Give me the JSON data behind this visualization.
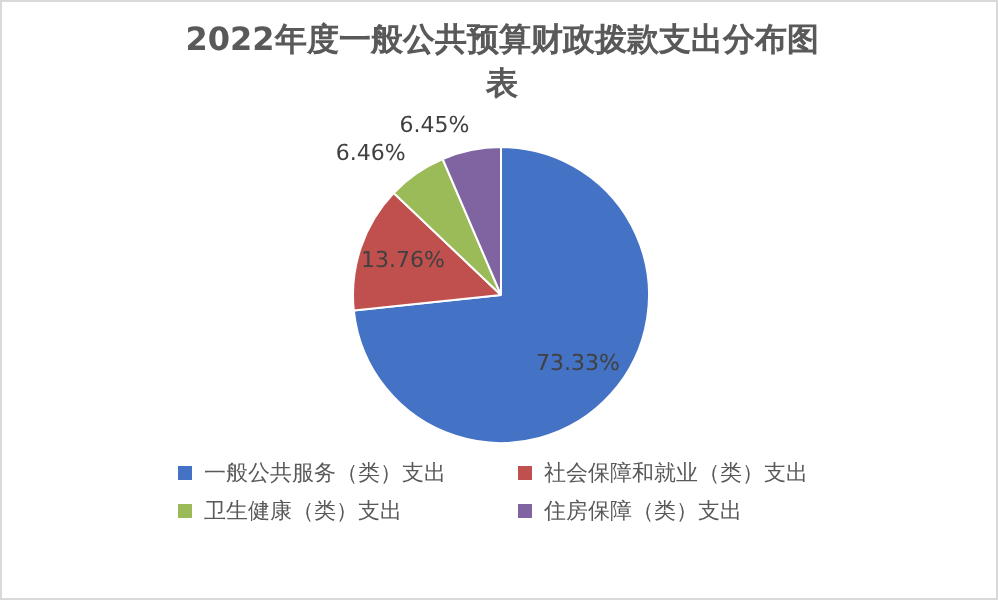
{
  "chart_data": {
    "type": "pie",
    "title": "2022年度一般公共预算财政拨款支出分布图表",
    "categories": [
      "一般公共服务（类）支出",
      "社会保障和就业（类）支出",
      "卫生健康（类）支出",
      "住房保障（类）支出"
    ],
    "values": [
      73.33,
      13.76,
      6.46,
      6.45
    ],
    "colors": [
      "#4472c4",
      "#c0504d",
      "#9bbb59",
      "#8064a2"
    ],
    "value_labels": [
      "73.33%",
      "13.76%",
      "6.46%",
      "6.45%"
    ],
    "legend": "bottom"
  }
}
